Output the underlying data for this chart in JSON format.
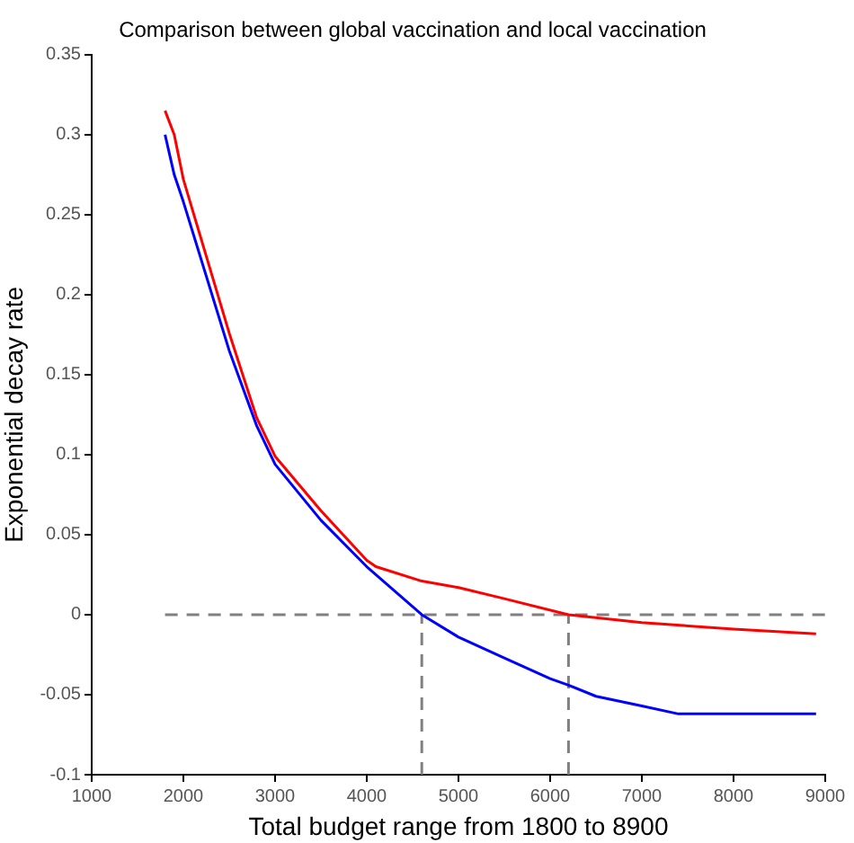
{
  "chart_data": {
    "type": "line",
    "title": "Comparison between global vaccination and local vaccination",
    "xlabel": "Total budget range from 1800 to 8900",
    "ylabel": "Exponential decay rate",
    "xlim": [
      1000,
      9000
    ],
    "xticks": [
      1000,
      2000,
      3000,
      4000,
      5000,
      6000,
      7000,
      8000,
      9000
    ],
    "ylim": [
      -0.1,
      0.35
    ],
    "yticks": [
      -0.1,
      -0.05,
      0,
      0.05,
      0.1,
      0.15,
      0.2,
      0.25,
      0.3,
      0.35
    ],
    "grid": false,
    "legend": false,
    "marker": "none",
    "series": [
      {
        "color": "#ff0000",
        "x": [
          1800,
          1900,
          2000,
          2500,
          2800,
          3000,
          3500,
          4000,
          4100,
          4600,
          5000,
          5500,
          6200,
          7000,
          8000,
          8900
        ],
        "values": [
          0.315,
          0.3,
          0.272,
          0.176,
          0.123,
          0.099,
          0.065,
          0.034,
          0.03,
          0.021,
          0.017,
          0.01,
          0,
          -0.005,
          -0.009,
          -0.012
        ]
      },
      {
        "color": "#0000ff",
        "x": [
          1800,
          1900,
          2000,
          2500,
          2800,
          3000,
          3500,
          4000,
          4600,
          5000,
          5500,
          6000,
          6200,
          6500,
          7000,
          7400,
          8900
        ],
        "values": [
          0.3,
          0.275,
          0.258,
          0.165,
          0.118,
          0.094,
          0.059,
          0.03,
          0,
          -0.014,
          -0.027,
          -0.04,
          -0.044,
          -0.051,
          -0.057,
          -0.062,
          -0.062
        ]
      },
      {
        "type": "line",
        "color": "#808080",
        "line_style": "dashed",
        "x": [
          1800,
          9000
        ],
        "values": [
          0,
          0
        ]
      },
      {
        "type": "line",
        "color": "#808080",
        "line_style": "dashed",
        "x": [
          4600,
          4600
        ],
        "values": [
          -0.1,
          0
        ]
      },
      {
        "type": "line",
        "color": "#808080",
        "line_style": "dashed",
        "x": [
          6200,
          6200
        ],
        "values": [
          -0.1,
          0
        ]
      }
    ]
  }
}
